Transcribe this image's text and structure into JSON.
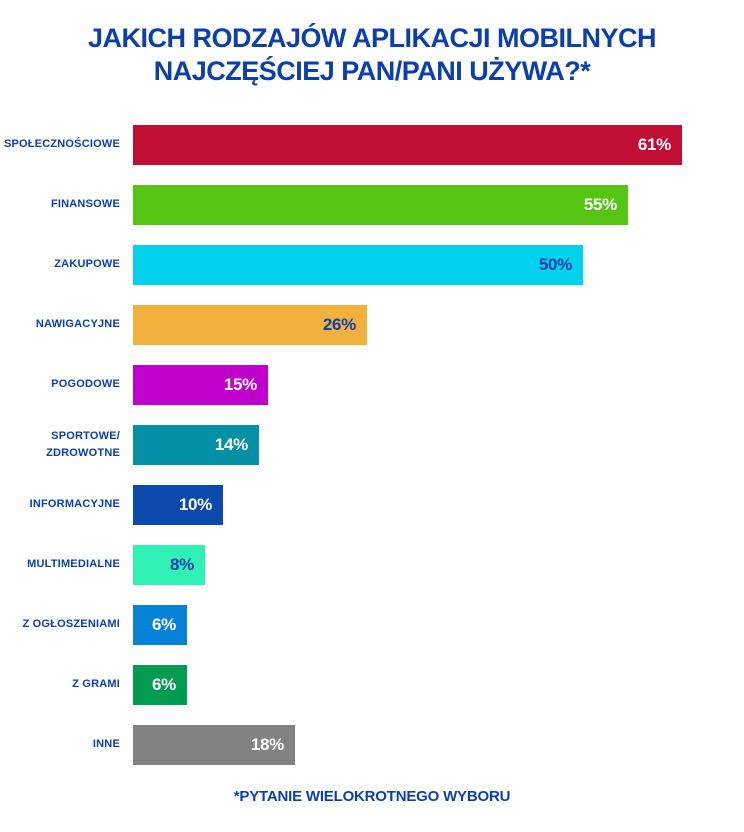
{
  "title": {
    "line1": "JAKICH RODZAJÓW APLIKACJI MOBILNYCH",
    "line2": "NAJCZĘŚCIEJ PAN/PANI UŻYWA?*"
  },
  "footnote": "*PYTANIE WIELOKROTNEGO WYBORU",
  "colors": {
    "background": "#FFFFFF",
    "text_blue": "#0A3FAD",
    "value_on_dark": "#FFFFFF"
  },
  "chart_data": {
    "type": "bar",
    "orientation": "horizontal",
    "title": "JAKICH RODZAJÓW APLIKACJI MOBILNYCH NAJCZĘŚCIEJ PAN/PANI UŻYWA?*",
    "footnote": "*PYTANIE WIELOKROTNEGO WYBORU",
    "unit": "%",
    "xlim": [
      0,
      65
    ],
    "grid": false,
    "legend": "none",
    "categories": [
      "SPOŁECZNOŚCIOWE",
      "FINANSOWE",
      "ZAKUPOWE",
      "NAWIGACYJNE",
      "POGODOWE",
      "SPORTOWE/ZDROWOTNE",
      "INFORMACYJNE",
      "MULTIMEDIALNE",
      "Z OGŁOSZENIAMI",
      "Z GRAMI",
      "INNE"
    ],
    "values": [
      61,
      55,
      50,
      26,
      15,
      14,
      10,
      8,
      6,
      6,
      18
    ],
    "bars": [
      {
        "label": "SPOŁECZNOŚCIOWE",
        "value": 61,
        "display": "61%",
        "color": "#C00D33",
        "value_color": "#FFFFFF"
      },
      {
        "label": "FINANSOWE",
        "value": 55,
        "display": "55%",
        "color": "#56C413",
        "value_color": "#FFFFFF"
      },
      {
        "label": "ZAKUPOWE",
        "value": 50,
        "display": "50%",
        "color": "#00D2EE",
        "value_color": "#0A3FAD"
      },
      {
        "label": "NAWIGACYJNE",
        "value": 26,
        "display": "26%",
        "color": "#F2B13D",
        "value_color": "#0A3FAD"
      },
      {
        "label": "POGODOWE",
        "value": 15,
        "display": "15%",
        "color": "#C000CC",
        "value_color": "#FFFFFF"
      },
      {
        "label": "SPORTOWE/\nZDROWOTNE",
        "value": 14,
        "display": "14%",
        "color": "#0591A5",
        "value_color": "#FFFFFF"
      },
      {
        "label": "INFORMACYJNE",
        "value": 10,
        "display": "10%",
        "color": "#0B49AC",
        "value_color": "#FFFFFF"
      },
      {
        "label": "MULTIMEDIALNE",
        "value": 8,
        "display": "8%",
        "color": "#30F2B6",
        "value_color": "#0A3FAD"
      },
      {
        "label": "Z OGŁOSZENIAMI",
        "value": 6,
        "display": "6%",
        "color": "#0782D9",
        "value_color": "#FFFFFF"
      },
      {
        "label": "Z GRAMI",
        "value": 6,
        "display": "6%",
        "color": "#009C51",
        "value_color": "#FFFFFF"
      },
      {
        "label": "INNE",
        "value": 18,
        "display": "18%",
        "color": "#828282",
        "value_color": "#FFFFFF"
      }
    ]
  }
}
